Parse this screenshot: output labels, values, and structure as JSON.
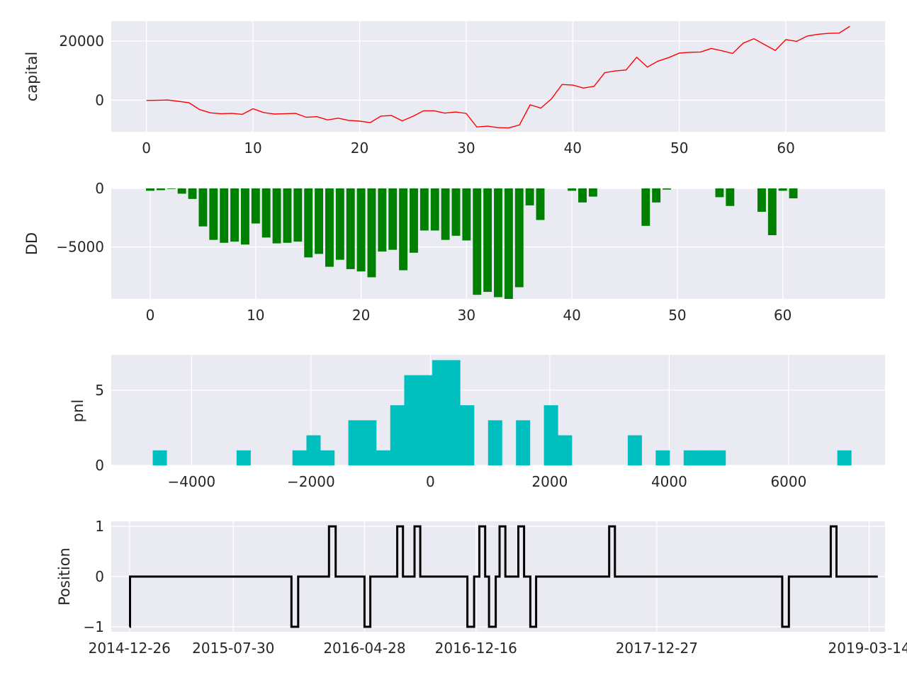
{
  "chart_data": [
    {
      "id": "capital",
      "type": "line",
      "ylabel": "capital",
      "color": "#ff0000",
      "xlim": [
        -3.3,
        69.3
      ],
      "ylim": [
        -10700,
        26700
      ],
      "xticks": [
        0,
        10,
        20,
        30,
        40,
        50,
        60
      ],
      "yticks": [
        0,
        20000
      ],
      "x": [
        0,
        1,
        2,
        3,
        4,
        5,
        6,
        7,
        8,
        9,
        10,
        11,
        12,
        13,
        14,
        15,
        16,
        17,
        18,
        19,
        20,
        21,
        22,
        23,
        24,
        25,
        26,
        27,
        28,
        29,
        30,
        31,
        32,
        33,
        34,
        35,
        36,
        37,
        38,
        39,
        40,
        41,
        42,
        43,
        44,
        45,
        46,
        47,
        48,
        49,
        50,
        51,
        52,
        53,
        54,
        55,
        56,
        57,
        58,
        59,
        60,
        61,
        62,
        63,
        64,
        65,
        66
      ],
      "y": [
        -100,
        -50,
        50,
        -400,
        -900,
        -3200,
        -4300,
        -4600,
        -4500,
        -4800,
        -2900,
        -4200,
        -4700,
        -4600,
        -4500,
        -5800,
        -5600,
        -6700,
        -6100,
        -6900,
        -7100,
        -7600,
        -5400,
        -5200,
        -7000,
        -5500,
        -3600,
        -3600,
        -4400,
        -4000,
        -4500,
        -9100,
        -8800,
        -9300,
        -9400,
        -8400,
        -1600,
        -2700,
        400,
        5300,
        5100,
        4100,
        4700,
        9300,
        9900,
        10200,
        14500,
        11200,
        13200,
        14400,
        15900,
        16200,
        16300,
        17500,
        16700,
        15800,
        19300,
        20800,
        18800,
        16800,
        20500,
        19900,
        21700,
        22300,
        22600,
        22700,
        25000
      ]
    },
    {
      "id": "dd",
      "type": "bar",
      "ylabel": "DD",
      "color": "#008000",
      "xlim": [
        -3.7,
        69.7
      ],
      "ylim": [
        -9450,
        0
      ],
      "xticks": [
        0,
        10,
        20,
        30,
        40,
        50,
        60
      ],
      "yticks": [
        0,
        -5000
      ],
      "x": [
        0,
        1,
        2,
        3,
        4,
        5,
        6,
        7,
        8,
        9,
        10,
        11,
        12,
        13,
        14,
        15,
        16,
        17,
        18,
        19,
        20,
        21,
        22,
        23,
        24,
        25,
        26,
        27,
        28,
        29,
        30,
        31,
        32,
        33,
        34,
        35,
        36,
        37,
        38,
        39,
        40,
        41,
        42,
        43,
        44,
        45,
        46,
        47,
        48,
        49,
        50,
        51,
        52,
        53,
        54,
        55,
        56,
        57,
        58,
        59,
        60,
        61,
        62,
        63,
        64,
        65,
        66
      ],
      "values": [
        -200,
        -150,
        -50,
        -450,
        -900,
        -3250,
        -4400,
        -4650,
        -4550,
        -4800,
        -3000,
        -4200,
        -4700,
        -4650,
        -4550,
        -5900,
        -5600,
        -6700,
        -6100,
        -6900,
        -7100,
        -7600,
        -5400,
        -5250,
        -7000,
        -5500,
        -3600,
        -3600,
        -4400,
        -4050,
        -4450,
        -9100,
        -8850,
        -9300,
        -9450,
        -8450,
        -1450,
        -2700,
        0,
        0,
        -200,
        -1200,
        -700,
        0,
        0,
        0,
        0,
        -3200,
        -1200,
        -100,
        0,
        0,
        0,
        0,
        -750,
        -1500,
        0,
        0,
        -2000,
        -4000,
        -200,
        -850,
        0,
        0,
        0,
        0,
        0
      ]
    },
    {
      "id": "pnl",
      "type": "bar",
      "ylabel": "pnl",
      "color": "#00bfbf",
      "xlim": [
        -5345,
        7615
      ],
      "ylim": [
        0,
        7.35
      ],
      "xticks": [
        -4000,
        -2000,
        0,
        2000,
        4000,
        6000
      ],
      "xtick_labels": [
        "−4000",
        "−2000",
        "0",
        "2000",
        "4000",
        "6000"
      ],
      "yticks": [
        0,
        5
      ],
      "bin_width": 234,
      "bin_edges_start": -4650,
      "counts": [
        1,
        0,
        0,
        0,
        0,
        0,
        1,
        0,
        0,
        0,
        1,
        2,
        1,
        0,
        3,
        3,
        1,
        4,
        6,
        6,
        7,
        7,
        4,
        0,
        3,
        0,
        3,
        0,
        4,
        2,
        0,
        0,
        0,
        0,
        2,
        0,
        1,
        0,
        1,
        1,
        1,
        0,
        0,
        0,
        0,
        0,
        0,
        0,
        0,
        1
      ]
    },
    {
      "id": "position",
      "type": "line",
      "ylabel": "Position",
      "color": "#000000",
      "xlim": [
        "2014-11-18",
        "2019-04-16"
      ],
      "ylim": [
        -1.1,
        1.1
      ],
      "xticks": [
        "2014-12-26",
        "2015-07-30",
        "2016-04-28",
        "2016-12-16",
        "2017-12-27",
        "2019-03-14"
      ],
      "xtick_labels": [
        "2014-12-26",
        "2015-07-30",
        "2016-04-28",
        "2016-12-16",
        "2017-12-27",
        "2019-03-14"
      ],
      "yticks": [
        1,
        0,
        -1
      ],
      "ytick_labels": [
        "1",
        "0",
        "−1"
      ],
      "x": [
        0,
        1,
        1,
        2,
        2,
        3,
        3,
        4,
        4,
        5,
        5,
        6,
        6,
        7,
        7,
        8,
        8,
        9,
        9,
        10,
        10,
        11,
        11,
        12,
        12,
        13,
        13,
        14,
        14,
        15,
        15,
        16,
        16,
        17,
        17,
        18,
        18,
        19,
        19,
        20,
        20,
        21,
        21,
        22,
        22,
        23,
        23,
        24,
        24,
        25,
        25,
        26,
        26,
        27,
        27,
        28,
        28,
        29,
        29,
        30,
        30,
        31,
        31,
        32,
        32,
        33,
        33,
        34,
        34,
        35,
        35,
        36
      ],
      "y": [
        -1,
        -1,
        0,
        0,
        -1,
        -1,
        0,
        0,
        1,
        1,
        0,
        0,
        -1,
        -1,
        0,
        0,
        1,
        1,
        0,
        0,
        1,
        1,
        0,
        0,
        -1,
        -1,
        0,
        0,
        1,
        1,
        0,
        0,
        -1,
        -1,
        0,
        0,
        1,
        1,
        0,
        0,
        1,
        1,
        0,
        0,
        -1,
        -1,
        0,
        0,
        1,
        1,
        0,
        0,
        -1,
        -1,
        0,
        0,
        1,
        1,
        0,
        0,
        0,
        0,
        0,
        0,
        0,
        0,
        0,
        0,
        0,
        0,
        0,
        0
      ],
      "steps": [
        [
          "2014-12-26",
          -1
        ],
        [
          "2014-12-27",
          0
        ],
        [
          "2015-11-28",
          -1
        ],
        [
          "2015-12-12",
          0
        ],
        [
          "2016-02-14",
          1
        ],
        [
          "2016-02-28",
          0
        ],
        [
          "2016-04-28",
          -1
        ],
        [
          "2016-05-10",
          0
        ],
        [
          "2016-07-05",
          1
        ],
        [
          "2016-07-17",
          0
        ],
        [
          "2016-08-10",
          1
        ],
        [
          "2016-08-22",
          0
        ],
        [
          "2016-11-28",
          -1
        ],
        [
          "2016-12-12",
          0
        ],
        [
          "2016-12-23",
          1
        ],
        [
          "2017-01-04",
          0
        ],
        [
          "2017-01-12",
          -1
        ],
        [
          "2017-01-26",
          0
        ],
        [
          "2017-02-03",
          1
        ],
        [
          "2017-02-15",
          0
        ],
        [
          "2017-03-14",
          1
        ],
        [
          "2017-03-26",
          0
        ],
        [
          "2017-04-08",
          -1
        ],
        [
          "2017-04-20",
          0
        ],
        [
          "2017-09-19",
          1
        ],
        [
          "2017-10-01",
          0
        ],
        [
          "2018-09-14",
          -1
        ],
        [
          "2018-09-28",
          0
        ],
        [
          "2018-12-24",
          1
        ],
        [
          "2019-01-05",
          0
        ],
        [
          "2019-04-01",
          0
        ]
      ]
    }
  ]
}
